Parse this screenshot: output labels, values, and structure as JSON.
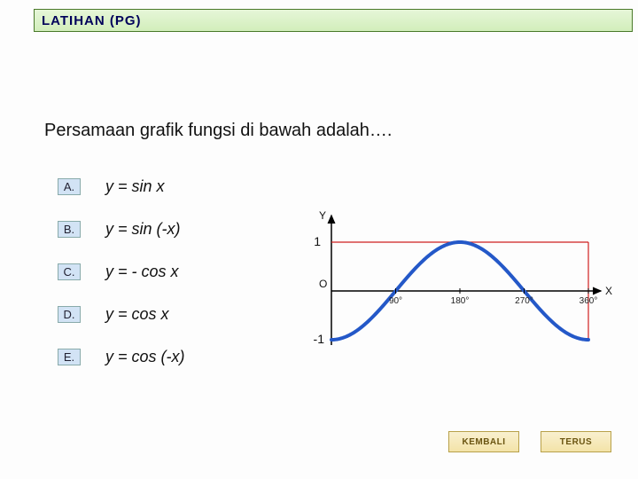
{
  "header": {
    "title": "LATIHAN  (PG)"
  },
  "question": "Persamaan grafik fungsi di bawah adalah….",
  "options": [
    {
      "letter": "A.",
      "text": "y =  sin x"
    },
    {
      "letter": "B.",
      "text": "y =  sin (-x)"
    },
    {
      "letter": "C.",
      "text": "y =  - cos x"
    },
    {
      "letter": "D.",
      "text": "y =  cos x"
    },
    {
      "letter": "E.",
      "text": "y =  cos (-x)"
    }
  ],
  "chart": {
    "type": "line",
    "curve": "neg_cos",
    "x_domain": [
      0,
      360
    ],
    "y_domain": [
      -1,
      1
    ],
    "x_ticks": [
      "90°",
      "180°",
      "270°",
      "360°"
    ],
    "y_ticks_top": "1",
    "y_ticks_bot": "-1",
    "label_y": "Y",
    "label_x": "X",
    "label_o": "O",
    "curve_color": "#2458c8",
    "curve_width": 4,
    "axis_color": "#000000",
    "guide_color": "#d02020",
    "background": "#fdfdfd",
    "label_fontsize": 12
  },
  "buttons": {
    "back": "KEMBALI",
    "next": "TERUS"
  }
}
